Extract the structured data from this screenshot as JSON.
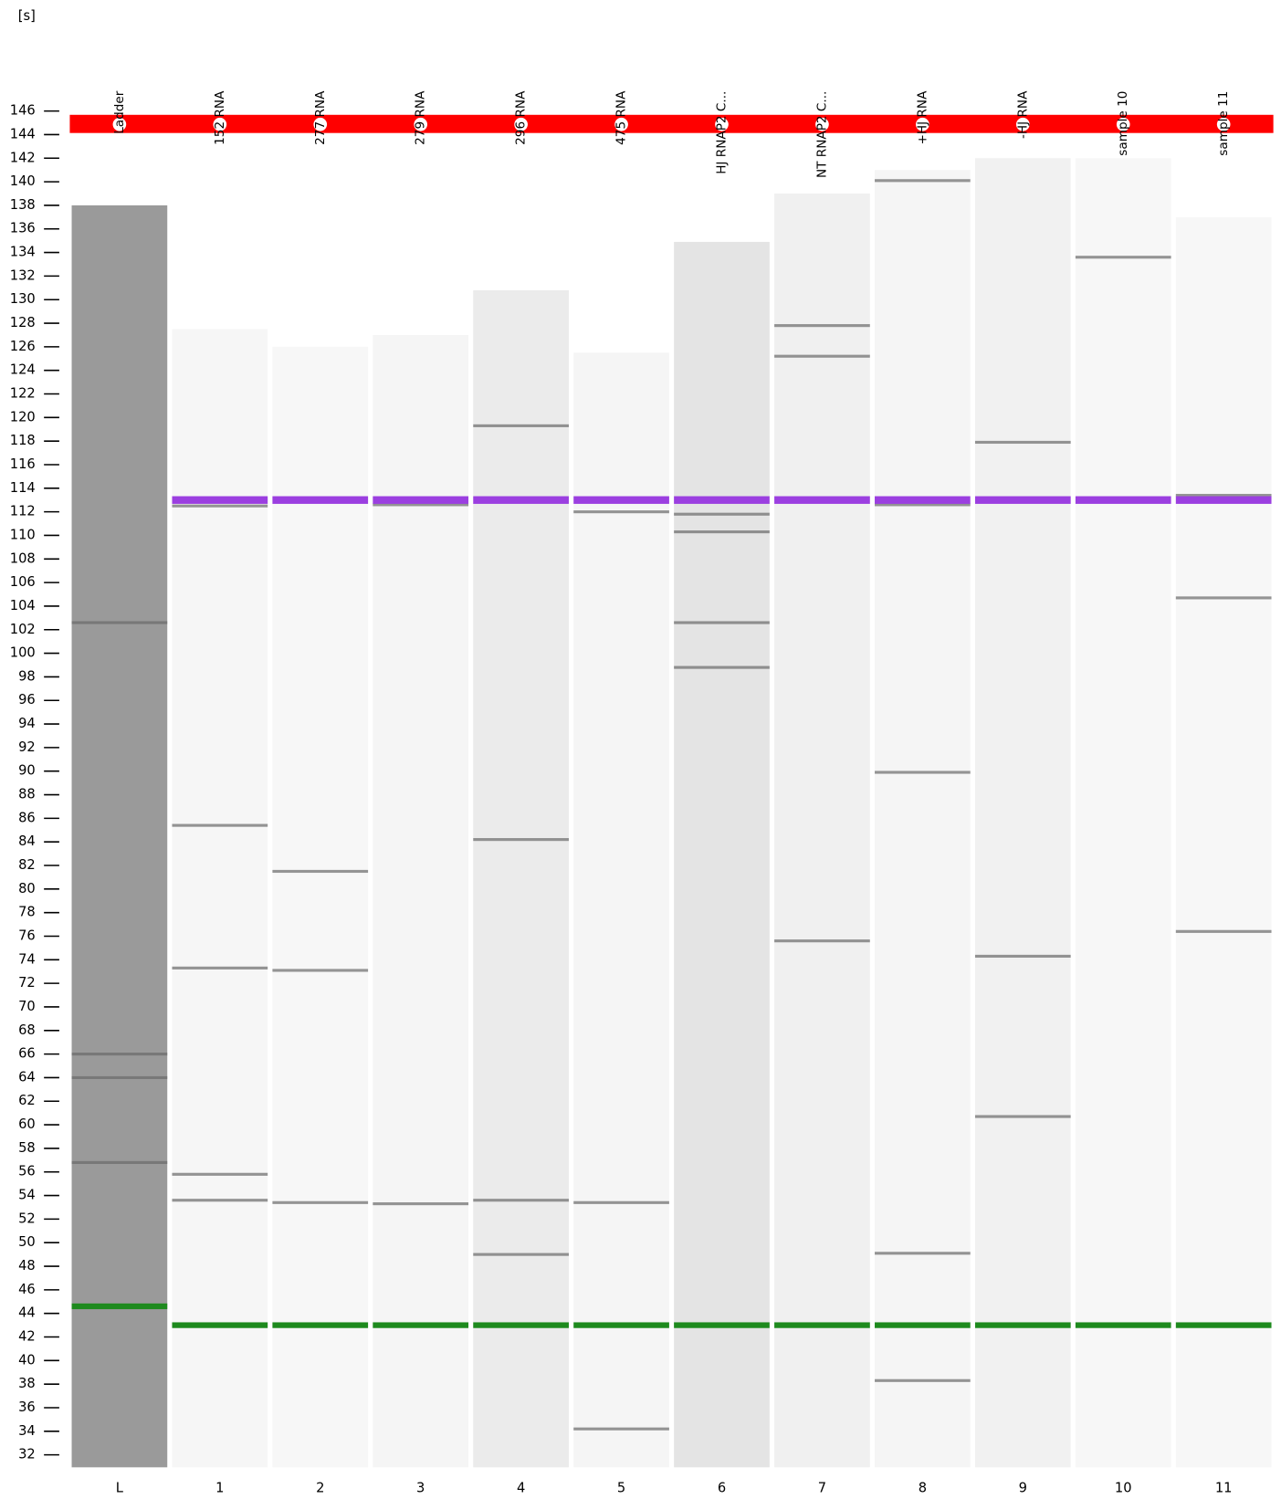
{
  "chart_data": {
    "type": "gel",
    "y_label": "[s]",
    "ylim": [
      30,
      147
    ],
    "yticks": [
      32,
      34,
      36,
      38,
      40,
      42,
      44,
      46,
      48,
      50,
      52,
      54,
      56,
      58,
      60,
      62,
      64,
      66,
      68,
      70,
      72,
      74,
      76,
      78,
      80,
      82,
      84,
      86,
      88,
      90,
      92,
      94,
      96,
      98,
      100,
      102,
      104,
      106,
      108,
      110,
      112,
      114,
      116,
      118,
      120,
      122,
      124,
      126,
      128,
      130,
      132,
      134,
      136,
      138,
      140,
      142,
      144,
      146
    ],
    "upper_marker_color": "#9b3fe0",
    "lower_marker_color": "#1e8a1e",
    "band_color": "#6a6a6a",
    "lanes": [
      {
        "name": "Ladder",
        "label": "L",
        "color": "#9a9a9a",
        "top": 138,
        "upper_marker": null,
        "lower_marker": 44.6,
        "bands": [
          102.6,
          66,
          64,
          56.8
        ]
      },
      {
        "name": "152 RNA",
        "label": "1",
        "color": "#f6f6f6",
        "top": 127.5,
        "upper_marker": 113,
        "lower_marker": 43,
        "bands": [
          112.5,
          85.4,
          73.3,
          55.8,
          53.6
        ]
      },
      {
        "name": "277 RNA",
        "label": "2",
        "color": "#f7f7f7",
        "top": 126,
        "upper_marker": 113,
        "lower_marker": 43,
        "bands": [
          81.5,
          73.1,
          53.4
        ]
      },
      {
        "name": "279 RNA",
        "label": "3",
        "color": "#f5f5f5",
        "top": 127,
        "upper_marker": 113,
        "lower_marker": 43,
        "bands": [
          112.6,
          53.3
        ]
      },
      {
        "name": "296 RNA",
        "label": "4",
        "color": "#ebebeb",
        "top": 130.8,
        "upper_marker": 113,
        "lower_marker": 43,
        "bands": [
          119.3,
          84.2,
          53.6,
          49
        ]
      },
      {
        "name": "475 RNA",
        "label": "5",
        "color": "#f5f5f5",
        "top": 125.5,
        "upper_marker": 113,
        "lower_marker": 43,
        "bands": [
          112,
          53.4,
          34.2
        ]
      },
      {
        "name": "HJ RNAP2 C...",
        "label": "6",
        "color": "#e4e4e4",
        "top": 134.9,
        "upper_marker": 113,
        "lower_marker": 43,
        "bands": [
          111.8,
          110.3,
          102.6,
          98.8
        ]
      },
      {
        "name": "NT RNAP2 C...",
        "label": "7",
        "color": "#f0f0f0",
        "top": 139,
        "upper_marker": 113,
        "lower_marker": 43,
        "bands": [
          127.8,
          125.2,
          75.6
        ]
      },
      {
        "name": "+HJ RNA",
        "label": "8",
        "color": "#f5f5f5",
        "top": 141,
        "upper_marker": 113,
        "lower_marker": 43,
        "bands": [
          140.1,
          112.6,
          89.9,
          49.1,
          38.3
        ]
      },
      {
        "name": "-HJ RNA",
        "label": "9",
        "color": "#f1f1f1",
        "top": 142,
        "upper_marker": 113,
        "lower_marker": 43,
        "bands": [
          117.9,
          74.3,
          60.7
        ]
      },
      {
        "name": "sample 10",
        "label": "10",
        "color": "#f7f7f7",
        "top": 142,
        "upper_marker": 113,
        "lower_marker": 43,
        "bands": [
          133.6
        ]
      },
      {
        "name": "sample 11",
        "label": "11",
        "color": "#f7f7f7",
        "top": 137,
        "upper_marker": 113,
        "lower_marker": 43,
        "bands": [
          113.4,
          104.7,
          76.4
        ]
      }
    ]
  }
}
